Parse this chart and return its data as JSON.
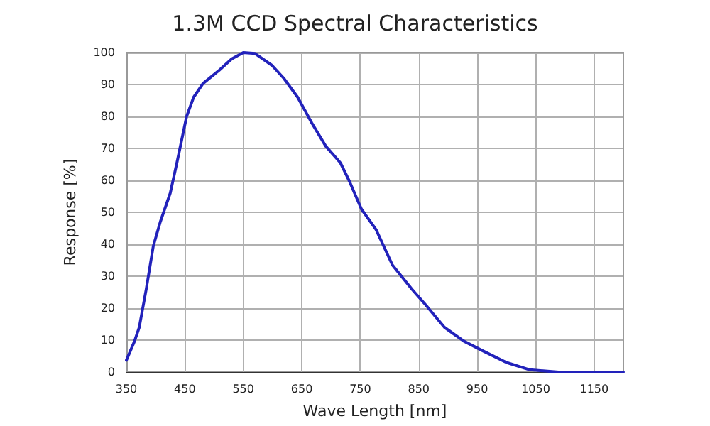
{
  "chart_data": {
    "type": "line",
    "title": "1.3M CCD Spectral Characteristics",
    "xlabel": "Wave Length [nm]",
    "ylabel": "Response [%]",
    "x": [
      350,
      364,
      372,
      384,
      396,
      408,
      425,
      437,
      453,
      465,
      481,
      509,
      530,
      550,
      570,
      599,
      619,
      643,
      667,
      691,
      716,
      732,
      752,
      777,
      805,
      838,
      862,
      894,
      927,
      959,
      1000,
      1040,
      1089,
      1200
    ],
    "series": [
      {
        "color": "#2222bb",
        "values": [
          3.7,
          9.7,
          14,
          26,
          39.4,
          47,
          56,
          66,
          80,
          86,
          90.3,
          94.5,
          98,
          100,
          99.7,
          96,
          92,
          86,
          78,
          70.7,
          65.5,
          59.5,
          51,
          44.6,
          33.5,
          26,
          21,
          14,
          9.7,
          6.7,
          3,
          0.7,
          0,
          0
        ]
      }
    ],
    "xlim": [
      350,
      1200
    ],
    "xticks": [
      350,
      450,
      550,
      650,
      750,
      850,
      950,
      1050,
      1150
    ],
    "ylim": [
      0,
      100
    ],
    "yticks": [
      0,
      10,
      20,
      30,
      40,
      50,
      60,
      70,
      80,
      90,
      100
    ],
    "grid": true,
    "marker": "none",
    "line_style": "solid"
  }
}
